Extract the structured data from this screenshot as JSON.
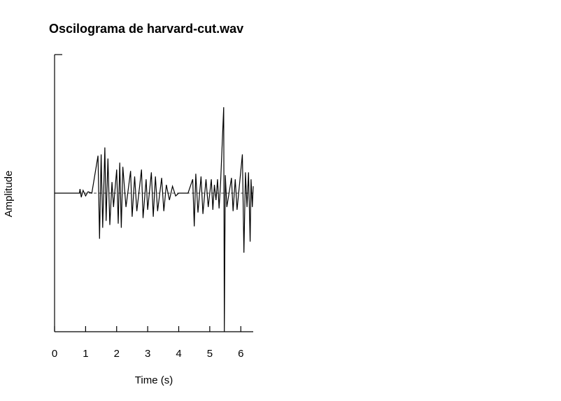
{
  "chart_data": {
    "type": "line",
    "title": "Oscilograma de harvard-cut.wav",
    "xlabel": "Time (s)",
    "ylabel": "Amplitude",
    "xlim": [
      0,
      6.4
    ],
    "ylim": [
      -1,
      1
    ],
    "xticks": [
      0,
      1,
      2,
      3,
      4,
      5,
      6
    ],
    "xtick_labels": [
      "0",
      "1",
      "2",
      "3",
      "4",
      "5",
      "6"
    ],
    "grid": false,
    "zero_line": {
      "style": "dashed",
      "y": 0
    },
    "series": [
      {
        "values": [
          [
            0.0,
            0.0
          ],
          [
            0.8,
            0.0
          ],
          [
            0.82,
            0.03
          ],
          [
            0.86,
            -0.03
          ],
          [
            0.92,
            0.02
          ],
          [
            1.0,
            -0.02
          ],
          [
            1.08,
            0.01
          ],
          [
            1.2,
            0.0
          ],
          [
            1.4,
            0.27
          ],
          [
            1.45,
            -0.33
          ],
          [
            1.5,
            0.28
          ],
          [
            1.55,
            -0.25
          ],
          [
            1.62,
            0.33
          ],
          [
            1.66,
            -0.2
          ],
          [
            1.72,
            0.25
          ],
          [
            1.78,
            -0.23
          ],
          [
            1.85,
            0.08
          ],
          [
            1.9,
            -0.1
          ],
          [
            2.0,
            0.17
          ],
          [
            2.05,
            -0.22
          ],
          [
            2.1,
            0.22
          ],
          [
            2.15,
            -0.25
          ],
          [
            2.2,
            0.19
          ],
          [
            2.3,
            -0.1
          ],
          [
            2.45,
            0.16
          ],
          [
            2.5,
            -0.17
          ],
          [
            2.58,
            0.12
          ],
          [
            2.65,
            -0.13
          ],
          [
            2.8,
            0.17
          ],
          [
            2.85,
            -0.18
          ],
          [
            2.95,
            0.1
          ],
          [
            3.0,
            -0.12
          ],
          [
            3.12,
            0.15
          ],
          [
            3.18,
            -0.17
          ],
          [
            3.25,
            0.12
          ],
          [
            3.32,
            -0.13
          ],
          [
            3.45,
            0.11
          ],
          [
            3.52,
            -0.13
          ],
          [
            3.6,
            0.06
          ],
          [
            3.7,
            -0.05
          ],
          [
            3.8,
            0.05
          ],
          [
            3.9,
            -0.02
          ],
          [
            4.0,
            0.0
          ],
          [
            4.3,
            0.0
          ],
          [
            4.45,
            0.1
          ],
          [
            4.5,
            -0.24
          ],
          [
            4.55,
            0.14
          ],
          [
            4.62,
            -0.14
          ],
          [
            4.72,
            0.12
          ],
          [
            4.78,
            -0.15
          ],
          [
            4.88,
            0.1
          ],
          [
            4.95,
            -0.1
          ],
          [
            5.05,
            0.1
          ],
          [
            5.1,
            -0.12
          ],
          [
            5.15,
            0.06
          ],
          [
            5.2,
            -0.05
          ],
          [
            5.25,
            0.1
          ],
          [
            5.3,
            -0.11
          ],
          [
            5.35,
            0.08
          ],
          [
            5.45,
            0.62
          ],
          [
            5.47,
            -1.0
          ],
          [
            5.5,
            0.13
          ],
          [
            5.55,
            -0.1
          ],
          [
            5.7,
            0.11
          ],
          [
            5.75,
            -0.13
          ],
          [
            5.82,
            0.1
          ],
          [
            5.88,
            -0.12
          ],
          [
            6.05,
            0.28
          ],
          [
            6.1,
            -0.43
          ],
          [
            6.15,
            0.15
          ],
          [
            6.2,
            -0.1
          ],
          [
            6.25,
            0.15
          ],
          [
            6.3,
            -0.35
          ],
          [
            6.33,
            0.1
          ],
          [
            6.37,
            -0.1
          ],
          [
            6.4,
            0.05
          ]
        ]
      }
    ]
  }
}
